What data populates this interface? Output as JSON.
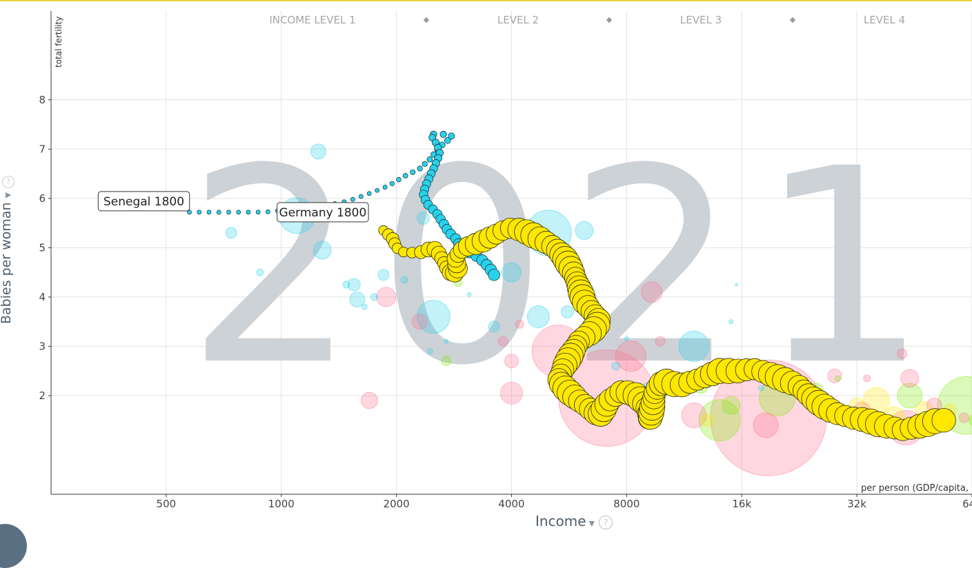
{
  "colors": {
    "africa": "#29d2ea",
    "asia": "#ff6f8e",
    "americas": "#7feb00",
    "europe": "#ffe700",
    "year_watermark": "#cdd2d7",
    "axis_text": "#4f5d6a",
    "top_border": "#e7d43a"
  },
  "year": "2021",
  "y_axis": {
    "title": "Babies per woman",
    "short_label": "total fertility",
    "help": "?",
    "caret": "▼"
  },
  "x_axis": {
    "title": "Income",
    "unit_label": "per person (GDP/capita,",
    "help": "?",
    "caret": "▼"
  },
  "income_levels": [
    "INCOME LEVEL 1",
    "LEVEL 2",
    "LEVEL 3",
    "LEVEL 4"
  ],
  "level_separator": "◆",
  "chart_data": {
    "type": "scatter",
    "xscale": "log",
    "xlim": [
      250,
      64000
    ],
    "ylim": [
      0,
      9.8
    ],
    "x_ticks": [
      500,
      1000,
      2000,
      4000,
      8000,
      16000,
      32000,
      64000
    ],
    "x_tick_labels": [
      "500",
      "1000",
      "2000",
      "4000",
      "8000",
      "16k",
      "32k",
      "64k"
    ],
    "y_ticks": [
      2,
      3,
      4,
      5,
      6,
      7,
      8
    ],
    "y_tick_labels": [
      "2",
      "3",
      "4",
      "5",
      "6",
      "7",
      "8"
    ],
    "grid": true,
    "labels": [
      {
        "text": "Senegal 1800",
        "x": 575,
        "y": 5.72
      },
      {
        "text": "Germany 1800",
        "x": 960,
        "y": 5.72
      }
    ],
    "series": [
      {
        "color_key": "africa",
        "trail_points": [
          [
            575,
            5.72
          ],
          [
            900,
            5.72
          ],
          [
            1300,
            5.85
          ],
          [
            1500,
            5.95
          ],
          [
            1700,
            6.1
          ],
          [
            1900,
            6.25
          ],
          [
            2100,
            6.45
          ],
          [
            2300,
            6.6
          ],
          [
            2450,
            6.8
          ],
          [
            2600,
            7.05
          ],
          [
            2800,
            7.25
          ],
          [
            2750,
            7.3
          ],
          [
            2600,
            7.3
          ],
          [
            2450,
            7.3
          ],
          [
            2550,
            7.1
          ],
          [
            2600,
            6.9
          ],
          [
            2500,
            6.6
          ],
          [
            2400,
            6.3
          ],
          [
            2350,
            6.1
          ],
          [
            2400,
            5.9
          ],
          [
            2550,
            5.7
          ],
          [
            2650,
            5.5
          ],
          [
            2750,
            5.3
          ],
          [
            2850,
            5.2
          ],
          [
            2950,
            5.0
          ],
          [
            3100,
            4.9
          ],
          [
            3300,
            4.8
          ],
          [
            3500,
            4.6
          ],
          [
            3600,
            4.45
          ]
        ],
        "trail_samples": 65
      },
      {
        "color_key": "europe",
        "trail_points": [
          [
            1850,
            5.35
          ],
          [
            1950,
            5.2
          ],
          [
            2000,
            5.0
          ],
          [
            2100,
            4.9
          ],
          [
            2300,
            4.9
          ],
          [
            2500,
            5.0
          ],
          [
            2600,
            4.85
          ],
          [
            2700,
            4.6
          ],
          [
            2800,
            4.45
          ],
          [
            2900,
            4.55
          ],
          [
            2850,
            4.8
          ],
          [
            3000,
            5.0
          ],
          [
            3300,
            5.1
          ],
          [
            3500,
            5.2
          ],
          [
            3800,
            5.35
          ],
          [
            4000,
            5.4
          ],
          [
            4300,
            5.35
          ],
          [
            4700,
            5.2
          ],
          [
            5200,
            5.0
          ],
          [
            5500,
            4.8
          ],
          [
            5800,
            4.5
          ],
          [
            6000,
            4.2
          ],
          [
            6200,
            3.9
          ],
          [
            6500,
            3.7
          ],
          [
            6800,
            3.5
          ],
          [
            6500,
            3.3
          ],
          [
            6000,
            3.1
          ],
          [
            5800,
            2.9
          ],
          [
            5500,
            2.6
          ],
          [
            5300,
            2.3
          ],
          [
            5600,
            2.1
          ],
          [
            6000,
            1.9
          ],
          [
            6500,
            1.7
          ],
          [
            6800,
            1.6
          ],
          [
            7200,
            1.9
          ],
          [
            7800,
            2.1
          ],
          [
            8500,
            2.0
          ],
          [
            9000,
            1.8
          ],
          [
            9200,
            1.5
          ],
          [
            9500,
            2.1
          ],
          [
            10000,
            2.3
          ],
          [
            11000,
            2.2
          ],
          [
            12000,
            2.3
          ],
          [
            13000,
            2.4
          ],
          [
            14000,
            2.5
          ],
          [
            15000,
            2.5
          ],
          [
            16000,
            2.5
          ],
          [
            17000,
            2.55
          ],
          [
            18000,
            2.5
          ],
          [
            19500,
            2.4
          ],
          [
            21000,
            2.3
          ],
          [
            22500,
            2.2
          ],
          [
            24000,
            2.0
          ],
          [
            26000,
            1.8
          ],
          [
            28000,
            1.65
          ],
          [
            31000,
            1.55
          ],
          [
            34000,
            1.5
          ],
          [
            37000,
            1.4
          ],
          [
            40000,
            1.35
          ],
          [
            42000,
            1.3
          ],
          [
            45000,
            1.35
          ],
          [
            48000,
            1.4
          ],
          [
            52000,
            1.5
          ],
          [
            54000,
            1.5
          ]
        ],
        "trail_samples": 130
      }
    ],
    "bubbles": [
      {
        "x": 1250,
        "y": 6.95,
        "r": 11,
        "c": "africa"
      },
      {
        "x": 1100,
        "y": 5.65,
        "r": 26,
        "c": "africa"
      },
      {
        "x": 740,
        "y": 5.3,
        "r": 8,
        "c": "africa"
      },
      {
        "x": 880,
        "y": 4.5,
        "r": 5,
        "c": "africa"
      },
      {
        "x": 1280,
        "y": 4.95,
        "r": 13,
        "c": "africa"
      },
      {
        "x": 1550,
        "y": 4.25,
        "r": 9,
        "c": "africa"
      },
      {
        "x": 1480,
        "y": 4.25,
        "r": 5,
        "c": "africa"
      },
      {
        "x": 1580,
        "y": 3.95,
        "r": 11,
        "c": "africa"
      },
      {
        "x": 1650,
        "y": 3.8,
        "r": 4,
        "c": "africa"
      },
      {
        "x": 1750,
        "y": 4.0,
        "r": 5,
        "c": "africa"
      },
      {
        "x": 1850,
        "y": 4.45,
        "r": 8,
        "c": "africa"
      },
      {
        "x": 2100,
        "y": 4.35,
        "r": 5,
        "c": "africa"
      },
      {
        "x": 2350,
        "y": 5.6,
        "r": 9,
        "c": "africa"
      },
      {
        "x": 2500,
        "y": 3.6,
        "r": 24,
        "c": "africa"
      },
      {
        "x": 2450,
        "y": 2.9,
        "r": 4,
        "c": "africa"
      },
      {
        "x": 2700,
        "y": 3.1,
        "r": 3,
        "c": "africa"
      },
      {
        "x": 3600,
        "y": 3.4,
        "r": 8,
        "c": "africa"
      },
      {
        "x": 4000,
        "y": 4.5,
        "r": 14,
        "c": "africa"
      },
      {
        "x": 4700,
        "y": 3.6,
        "r": 16,
        "c": "africa"
      },
      {
        "x": 5000,
        "y": 5.3,
        "r": 33,
        "c": "africa"
      },
      {
        "x": 6200,
        "y": 5.35,
        "r": 13,
        "c": "africa"
      },
      {
        "x": 5600,
        "y": 3.7,
        "r": 9,
        "c": "africa"
      },
      {
        "x": 8000,
        "y": 3.15,
        "r": 3,
        "c": "africa"
      },
      {
        "x": 12000,
        "y": 3.0,
        "r": 22,
        "c": "africa"
      },
      {
        "x": 15000,
        "y": 3.5,
        "r": 3,
        "c": "africa"
      },
      {
        "x": 15500,
        "y": 4.25,
        "r": 2,
        "c": "africa"
      },
      {
        "x": 18000,
        "y": 2.15,
        "r": 4,
        "c": "africa"
      },
      {
        "x": 7500,
        "y": 2.6,
        "r": 6,
        "c": "africa"
      },
      {
        "x": 9000,
        "y": 2.2,
        "r": 4,
        "c": "africa"
      },
      {
        "x": 3100,
        "y": 4.05,
        "r": 3,
        "c": "africa"
      },
      {
        "x": 1700,
        "y": 1.9,
        "r": 12,
        "c": "asia"
      },
      {
        "x": 1880,
        "y": 4.0,
        "r": 14,
        "c": "asia"
      },
      {
        "x": 2300,
        "y": 3.5,
        "r": 11,
        "c": "asia"
      },
      {
        "x": 3800,
        "y": 3.1,
        "r": 7,
        "c": "asia"
      },
      {
        "x": 4000,
        "y": 2.7,
        "r": 10,
        "c": "asia"
      },
      {
        "x": 4200,
        "y": 3.45,
        "r": 6,
        "c": "asia"
      },
      {
        "x": 4000,
        "y": 2.05,
        "r": 16,
        "c": "asia"
      },
      {
        "x": 5300,
        "y": 2.9,
        "r": 38,
        "c": "asia"
      },
      {
        "x": 7100,
        "y": 1.95,
        "r": 70,
        "c": "asia"
      },
      {
        "x": 8200,
        "y": 2.8,
        "r": 22,
        "c": "asia"
      },
      {
        "x": 9300,
        "y": 4.1,
        "r": 15,
        "c": "asia"
      },
      {
        "x": 9800,
        "y": 3.1,
        "r": 7,
        "c": "asia"
      },
      {
        "x": 12000,
        "y": 1.6,
        "r": 18,
        "c": "asia"
      },
      {
        "x": 18800,
        "y": 1.55,
        "r": 84,
        "c": "asia"
      },
      {
        "x": 18500,
        "y": 1.4,
        "r": 18,
        "c": "asia"
      },
      {
        "x": 28000,
        "y": 2.4,
        "r": 10,
        "c": "asia"
      },
      {
        "x": 33000,
        "y": 1.7,
        "r": 12,
        "c": "asia"
      },
      {
        "x": 42000,
        "y": 2.85,
        "r": 7,
        "c": "asia"
      },
      {
        "x": 44000,
        "y": 2.35,
        "r": 13,
        "c": "asia"
      },
      {
        "x": 43000,
        "y": 1.35,
        "r": 25,
        "c": "asia"
      },
      {
        "x": 51000,
        "y": 1.8,
        "r": 11,
        "c": "asia"
      },
      {
        "x": 61000,
        "y": 1.55,
        "r": 7,
        "c": "asia"
      },
      {
        "x": 34000,
        "y": 2.35,
        "r": 5,
        "c": "asia"
      },
      {
        "x": 2700,
        "y": 2.7,
        "r": 7,
        "c": "americas"
      },
      {
        "x": 2900,
        "y": 4.3,
        "r": 6,
        "c": "americas"
      },
      {
        "x": 5500,
        "y": 4.7,
        "r": 10,
        "c": "americas"
      },
      {
        "x": 8300,
        "y": 1.9,
        "r": 9,
        "c": "americas"
      },
      {
        "x": 10000,
        "y": 2.2,
        "r": 12,
        "c": "americas"
      },
      {
        "x": 12500,
        "y": 2.2,
        "r": 11,
        "c": "americas"
      },
      {
        "x": 14000,
        "y": 1.5,
        "r": 30,
        "c": "americas"
      },
      {
        "x": 15000,
        "y": 1.8,
        "r": 13,
        "c": "americas"
      },
      {
        "x": 19800,
        "y": 1.95,
        "r": 26,
        "c": "americas"
      },
      {
        "x": 25000,
        "y": 2.1,
        "r": 11,
        "c": "americas"
      },
      {
        "x": 28500,
        "y": 2.35,
        "r": 4,
        "c": "americas"
      },
      {
        "x": 44000,
        "y": 2.0,
        "r": 18,
        "c": "americas"
      },
      {
        "x": 62000,
        "y": 1.8,
        "r": 42,
        "c": "americas"
      },
      {
        "x": 65000,
        "y": 1.5,
        "r": 8,
        "c": "americas"
      },
      {
        "x": 13000,
        "y": 1.5,
        "r": 9,
        "c": "europe"
      },
      {
        "x": 15500,
        "y": 2.5,
        "r": 8,
        "c": "europe"
      },
      {
        "x": 32000,
        "y": 1.8,
        "r": 11,
        "c": "europe"
      },
      {
        "x": 36000,
        "y": 1.9,
        "r": 19,
        "c": "europe"
      },
      {
        "x": 40000,
        "y": 1.55,
        "r": 16,
        "c": "europe"
      },
      {
        "x": 48000,
        "y": 1.7,
        "r": 13,
        "c": "europe"
      },
      {
        "x": 56000,
        "y": 1.7,
        "r": 9,
        "c": "europe"
      },
      {
        "x": 30000,
        "y": 1.5,
        "r": 7,
        "c": "europe"
      }
    ]
  }
}
